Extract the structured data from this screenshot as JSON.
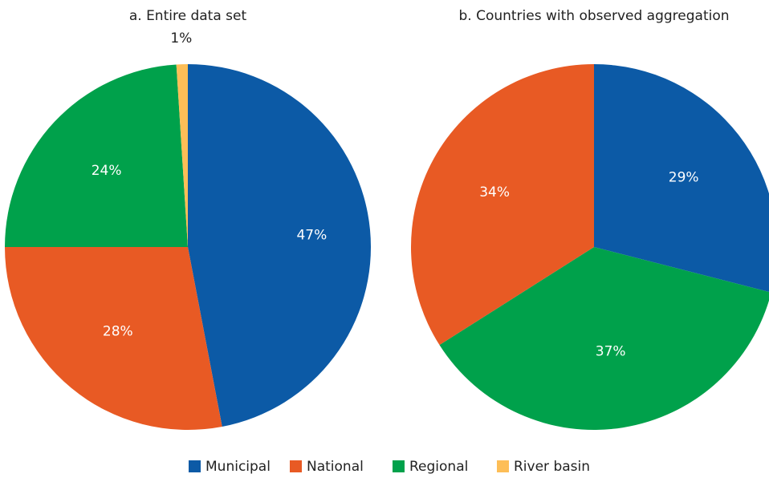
{
  "colors": {
    "Municipal": "#0c5aa6",
    "National": "#e85a24",
    "Regional": "#00a14b",
    "River basin": "#fdbe57"
  },
  "legend": [
    "Municipal",
    "National",
    "Regional",
    "River basin"
  ],
  "chart_data": [
    {
      "type": "pie",
      "title": "a. Entire data set",
      "slices": [
        {
          "label": "Municipal",
          "value": 47,
          "text": "47%"
        },
        {
          "label": "National",
          "value": 28,
          "text": "28%"
        },
        {
          "label": "Regional",
          "value": 24,
          "text": "24%"
        },
        {
          "label": "River basin",
          "value": 1,
          "text": "1%"
        }
      ]
    },
    {
      "type": "pie",
      "title": "b. Countries with observed aggregation",
      "slices": [
        {
          "label": "Municipal",
          "value": 29,
          "text": "29%"
        },
        {
          "label": "Regional",
          "value": 37,
          "text": "37%"
        },
        {
          "label": "National",
          "value": 34,
          "text": "34%"
        }
      ]
    }
  ]
}
